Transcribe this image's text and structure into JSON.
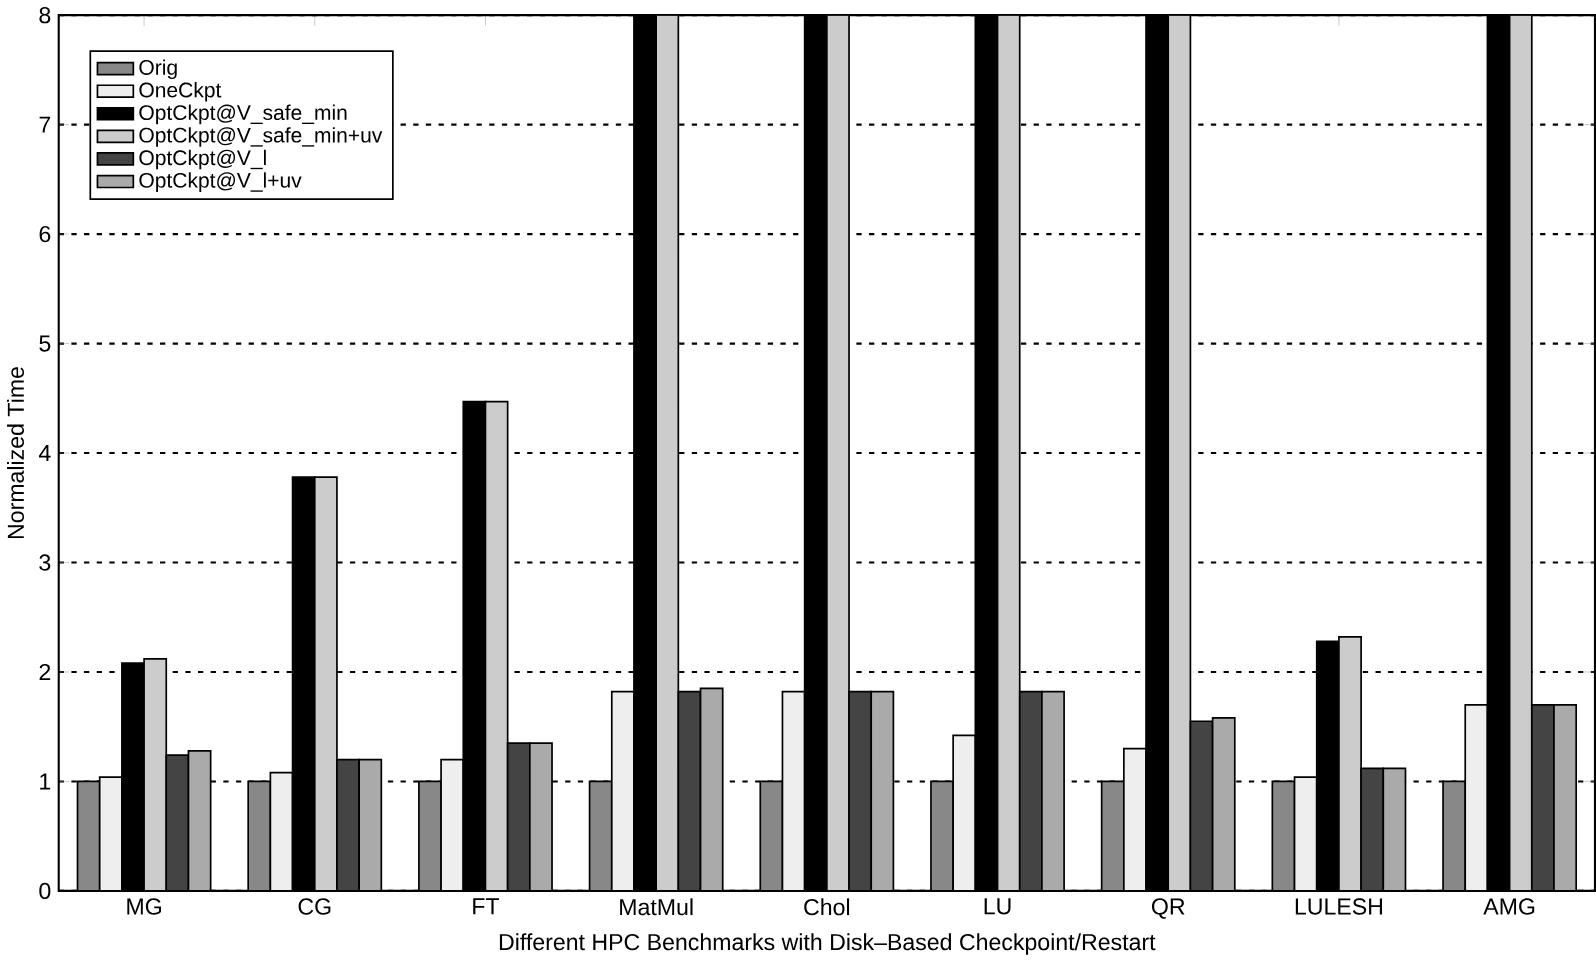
{
  "chart_data": {
    "type": "bar",
    "xlabel": "Different HPC Benchmarks with Disk–Based Checkpoint/Restart",
    "ylabel": "Normalized Time",
    "categories": [
      "MG",
      "CG",
      "FT",
      "MatMul",
      "Chol",
      "LU",
      "QR",
      "LULESH",
      "AMG"
    ],
    "series": [
      {
        "name": "Orig",
        "color": "#888888",
        "values": [
          1,
          1,
          1,
          1,
          1,
          1,
          1,
          1,
          1
        ]
      },
      {
        "name": "OneCkpt",
        "color": "#eeeeee",
        "values": [
          1.04,
          1.08,
          1.2,
          1.82,
          1.82,
          1.42,
          1.3,
          1.04,
          1.7
        ]
      },
      {
        "name": "OptCkpt@V_safe_min",
        "color": "#000000",
        "values": [
          2.08,
          3.78,
          4.47,
          8,
          8,
          8,
          8,
          2.28,
          8
        ]
      },
      {
        "name": "OptCkpt@V_safe_min+uv",
        "color": "#cccccc",
        "values": [
          2.12,
          3.78,
          4.47,
          8,
          8,
          8,
          8,
          2.32,
          8
        ]
      },
      {
        "name": "OptCkpt@V_l",
        "color": "#444444",
        "values": [
          1.24,
          1.2,
          1.35,
          1.82,
          1.82,
          1.82,
          1.55,
          1.12,
          1.7
        ]
      },
      {
        "name": "OptCkpt@V_l+uv",
        "color": "#aaaaaa",
        "values": [
          1.28,
          1.2,
          1.35,
          1.85,
          1.82,
          1.82,
          1.58,
          1.12,
          1.7
        ]
      }
    ],
    "ylim": [
      0,
      8
    ],
    "yticks": [
      0,
      1,
      2,
      3,
      4,
      5,
      6,
      7,
      8
    ],
    "grid": "y",
    "legend": "top left"
  }
}
